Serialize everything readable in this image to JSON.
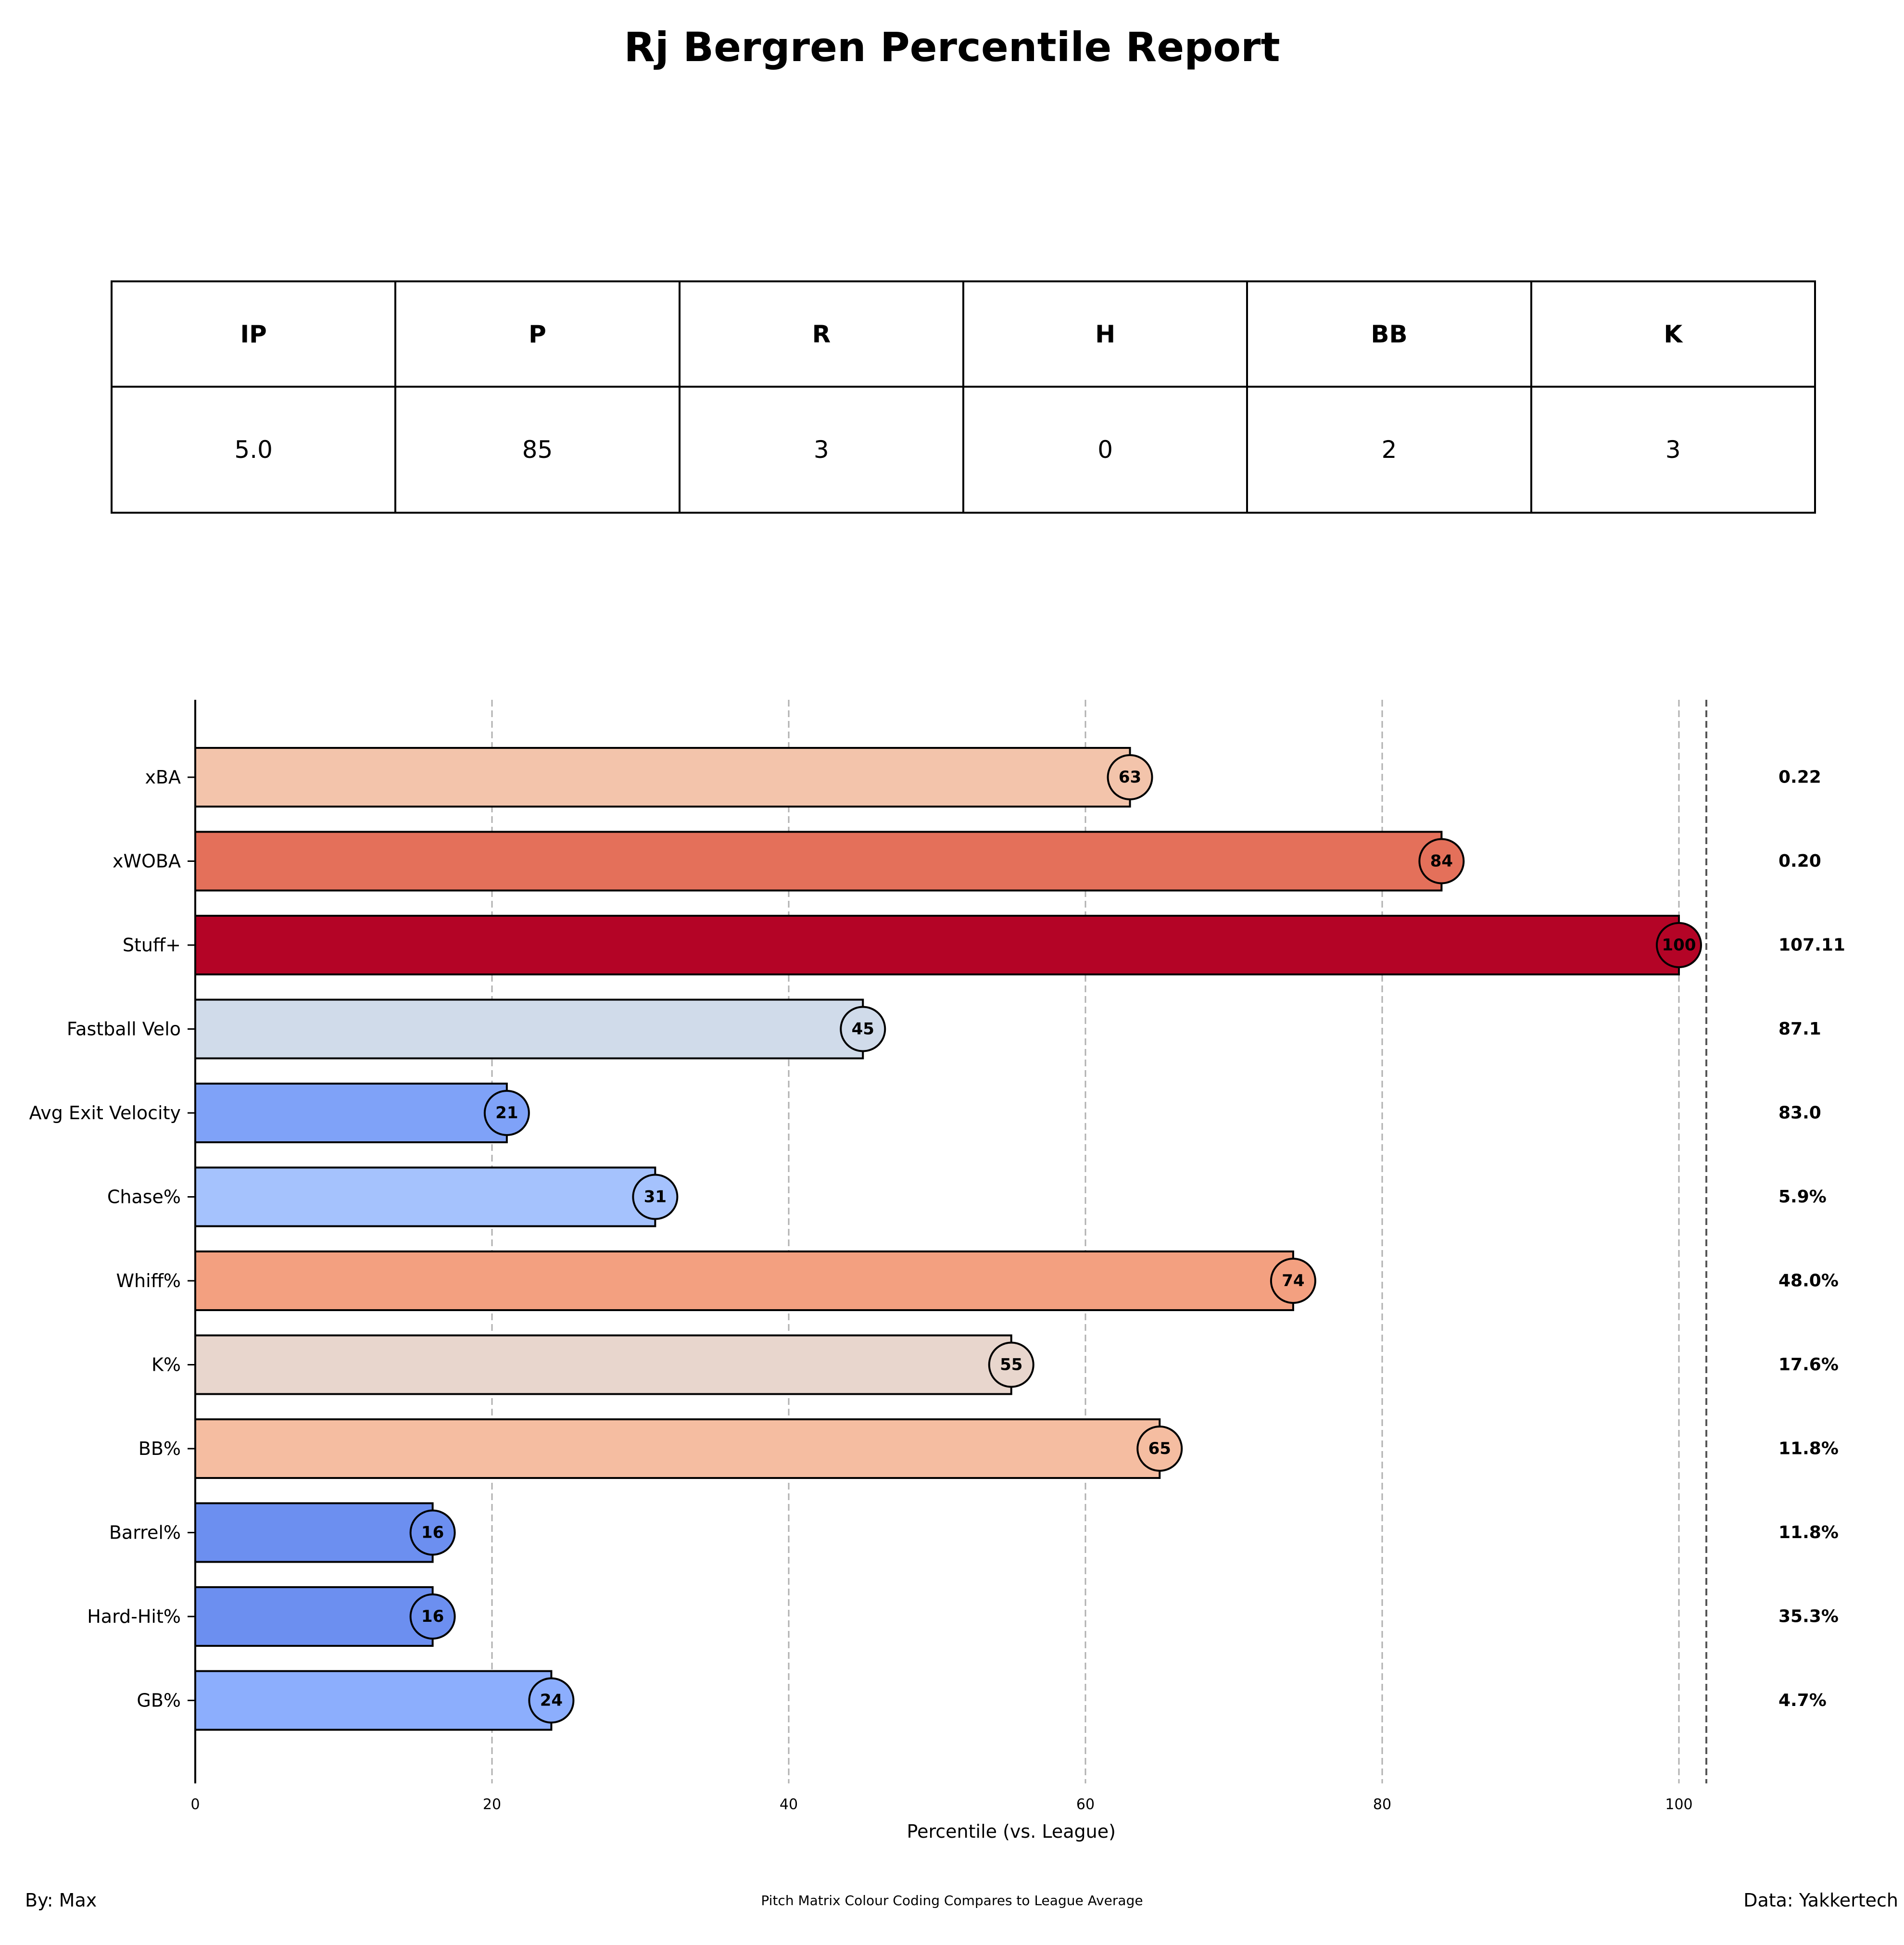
{
  "title": "Rj Bergren Percentile Report",
  "stats_table": {
    "headers": [
      "IP",
      "P",
      "R",
      "H",
      "BB",
      "K"
    ],
    "values": [
      "5.0",
      "85",
      "3",
      "0",
      "2",
      "3"
    ]
  },
  "chart_data": {
    "type": "bar",
    "orientation": "horizontal",
    "title": "",
    "xlabel": "Percentile (vs. League)",
    "ylabel": "",
    "xlim": [
      0,
      110
    ],
    "xticks": [
      0,
      20,
      40,
      60,
      80,
      100
    ],
    "grid": "vertical dashed",
    "categories": [
      "xBA",
      "xWOBA",
      "Stuff+",
      "Fastball Velo",
      "Avg Exit Velocity",
      "Chase%",
      "Whiff%",
      "K%",
      "BB%",
      "Barrel%",
      "Hard-Hit%",
      "GB%"
    ],
    "values": [
      63,
      84,
      100,
      45,
      21,
      31,
      74,
      55,
      65,
      16,
      16,
      24
    ],
    "stat_values": [
      "0.22",
      "0.20",
      "107.11",
      "87.1",
      "83.0",
      "5.9%",
      "48.0%",
      "17.6%",
      "11.8%",
      "11.8%",
      "35.3%",
      "4.7%"
    ],
    "colors": [
      "#f3c4ab",
      "#e4705a",
      "#b40426",
      "#d0dbea",
      "#7fa2f8",
      "#a5c2fd",
      "#f3a080",
      "#e8d6cd",
      "#f5bda1",
      "#6c8ff0",
      "#6c8ff0",
      "#8caefd"
    ]
  },
  "footer": {
    "left": "By: Max",
    "center": "Pitch Matrix Colour Coding Compares to League Average",
    "right": "Data: Yakkertech"
  }
}
